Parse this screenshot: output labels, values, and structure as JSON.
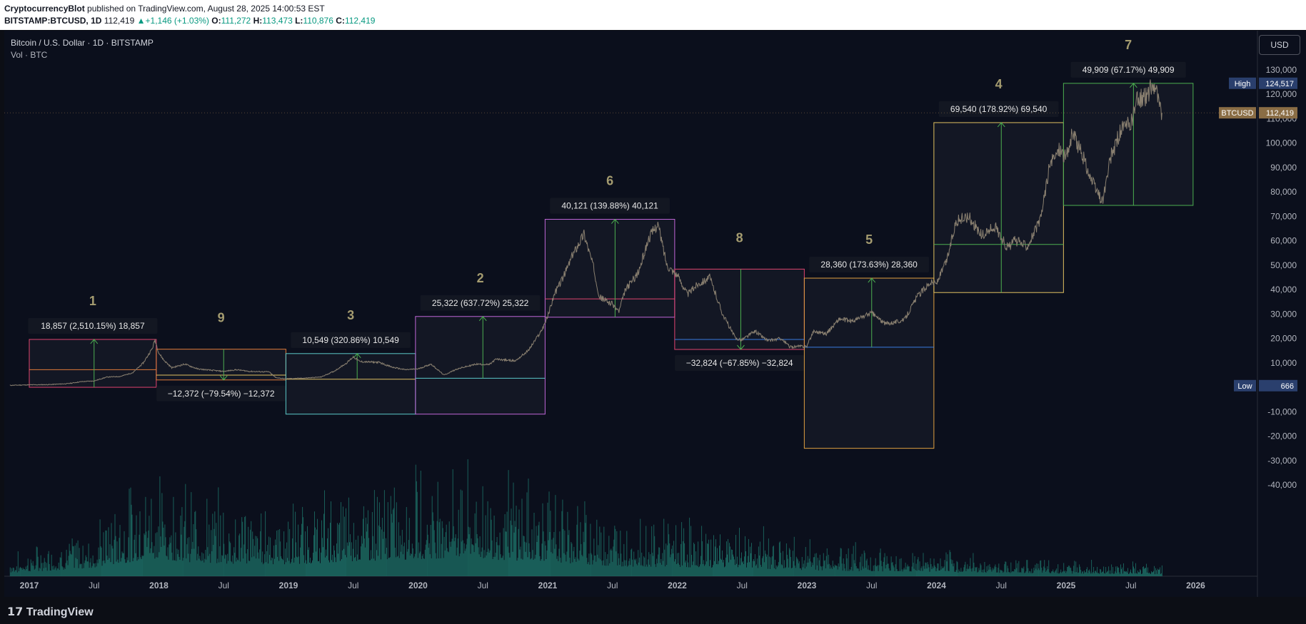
{
  "header": {
    "author": "CryptocurrencyBlot",
    "published": "published on TradingView.com, August 28, 2025 14:00:53 EST",
    "symbol": "BITSTAMP:BTCUSD, 1D",
    "last": "112,419",
    "change_arrow": "▲",
    "change": "+1,146 (+1.03%)",
    "o_label": "O:",
    "o": "111,272",
    "h_label": "H:",
    "h": "113,473",
    "l_label": "L:",
    "l": "110,876",
    "c_label": "C:",
    "c": "112,419"
  },
  "chart_legend": {
    "title": "Bitcoin / U.S. Dollar · 1D · BITSTAMP",
    "volume": "Vol · BTC"
  },
  "currency_button": "USD",
  "footer": {
    "logo": "TradingView"
  },
  "colors": {
    "background": "#0b0f1c",
    "price_line": "#8a8070",
    "volume": "#26a69a",
    "cycle_number": "#a59c70"
  },
  "chart_data": {
    "type": "line",
    "y_ticks": [
      130000,
      120000,
      110000,
      100000,
      90000,
      80000,
      70000,
      60000,
      50000,
      40000,
      30000,
      20000,
      10000,
      0,
      -10000,
      -20000,
      -30000,
      -40000
    ],
    "y_tick_labels": [
      "130,000",
      "120,000",
      "110,000",
      "100,000",
      "90,000",
      "80,000",
      "70,000",
      "60,000",
      "50,000",
      "40,000",
      "30,000",
      "20,000",
      "10,000",
      "",
      "-10,000",
      "-20,000",
      "-30,000",
      "-40,000"
    ],
    "ylim": [
      -43000,
      143000
    ],
    "x_ticks": [
      {
        "t": 2017.0,
        "label": "2017"
      },
      {
        "t": 2017.5,
        "label": "Jul"
      },
      {
        "t": 2018.0,
        "label": "2018"
      },
      {
        "t": 2018.5,
        "label": "Jul"
      },
      {
        "t": 2019.0,
        "label": "2019"
      },
      {
        "t": 2019.5,
        "label": "Jul"
      },
      {
        "t": 2020.0,
        "label": "2020"
      },
      {
        "t": 2020.5,
        "label": "Jul"
      },
      {
        "t": 2021.0,
        "label": "2021"
      },
      {
        "t": 2021.5,
        "label": "Jul"
      },
      {
        "t": 2022.0,
        "label": "2022"
      },
      {
        "t": 2022.5,
        "label": "Jul"
      },
      {
        "t": 2023.0,
        "label": "2023"
      },
      {
        "t": 2023.5,
        "label": "Jul"
      },
      {
        "t": 2024.0,
        "label": "2024"
      },
      {
        "t": 2024.5,
        "label": "Jul"
      },
      {
        "t": 2025.0,
        "label": "2025"
      },
      {
        "t": 2025.5,
        "label": "Jul"
      },
      {
        "t": 2026.0,
        "label": "2026"
      }
    ],
    "price_markers": [
      {
        "name": "High",
        "value": 124517,
        "label": "124,517",
        "color": "#2a3f6d"
      },
      {
        "name": "BTCUSD",
        "value": 112419,
        "label": "112,419",
        "color": "#8a6d45"
      },
      {
        "name": "Low",
        "value": 666,
        "label": "666",
        "color": "#2a3f6d"
      }
    ],
    "series": [
      {
        "values": [
          [
            2016.85,
            800
          ],
          [
            2017.0,
            1000
          ],
          [
            2017.15,
            1100
          ],
          [
            2017.3,
            1500
          ],
          [
            2017.4,
            2300
          ],
          [
            2017.5,
            2600
          ],
          [
            2017.6,
            4200
          ],
          [
            2017.7,
            4400
          ],
          [
            2017.8,
            6000
          ],
          [
            2017.88,
            10000
          ],
          [
            2017.95,
            16000
          ],
          [
            2017.97,
            19500
          ],
          [
            2018.0,
            14000
          ],
          [
            2018.04,
            11000
          ],
          [
            2018.1,
            8000
          ],
          [
            2018.2,
            9500
          ],
          [
            2018.3,
            7500
          ],
          [
            2018.4,
            7000
          ],
          [
            2018.5,
            6500
          ],
          [
            2018.6,
            7200
          ],
          [
            2018.7,
            6500
          ],
          [
            2018.85,
            6300
          ],
          [
            2018.9,
            4000
          ],
          [
            2018.97,
            3500
          ],
          [
            2019.1,
            3700
          ],
          [
            2019.25,
            4200
          ],
          [
            2019.35,
            6500
          ],
          [
            2019.45,
            10000
          ],
          [
            2019.5,
            12500
          ],
          [
            2019.55,
            10500
          ],
          [
            2019.7,
            10200
          ],
          [
            2019.8,
            8200
          ],
          [
            2019.9,
            7200
          ],
          [
            2020.0,
            7500
          ],
          [
            2020.1,
            9500
          ],
          [
            2020.2,
            5000
          ],
          [
            2020.3,
            7500
          ],
          [
            2020.45,
            9500
          ],
          [
            2020.55,
            9300
          ],
          [
            2020.6,
            11500
          ],
          [
            2020.75,
            10800
          ],
          [
            2020.85,
            15000
          ],
          [
            2020.95,
            23000
          ],
          [
            2021.0,
            29000
          ],
          [
            2021.05,
            38000
          ],
          [
            2021.12,
            45000
          ],
          [
            2021.2,
            55000
          ],
          [
            2021.28,
            63000
          ],
          [
            2021.35,
            50000
          ],
          [
            2021.4,
            37000
          ],
          [
            2021.5,
            34000
          ],
          [
            2021.55,
            31000
          ],
          [
            2021.6,
            40000
          ],
          [
            2021.7,
            47000
          ],
          [
            2021.78,
            61000
          ],
          [
            2021.85,
            67000
          ],
          [
            2021.92,
            50000
          ],
          [
            2022.0,
            46000
          ],
          [
            2022.08,
            38000
          ],
          [
            2022.15,
            42000
          ],
          [
            2022.25,
            45000
          ],
          [
            2022.35,
            30000
          ],
          [
            2022.45,
            20000
          ],
          [
            2022.5,
            19500
          ],
          [
            2022.6,
            23000
          ],
          [
            2022.7,
            19000
          ],
          [
            2022.8,
            20000
          ],
          [
            2022.87,
            16500
          ],
          [
            2022.95,
            16800
          ],
          [
            2023.0,
            16800
          ],
          [
            2023.05,
            23000
          ],
          [
            2023.15,
            22000
          ],
          [
            2023.25,
            28000
          ],
          [
            2023.35,
            27000
          ],
          [
            2023.5,
            30500
          ],
          [
            2023.6,
            26000
          ],
          [
            2023.75,
            27500
          ],
          [
            2023.85,
            37000
          ],
          [
            2023.95,
            43000
          ],
          [
            2024.0,
            42500
          ],
          [
            2024.08,
            52000
          ],
          [
            2024.15,
            68000
          ],
          [
            2024.25,
            70000
          ],
          [
            2024.35,
            62000
          ],
          [
            2024.45,
            66000
          ],
          [
            2024.55,
            57000
          ],
          [
            2024.6,
            60000
          ],
          [
            2024.7,
            58000
          ],
          [
            2024.8,
            68000
          ],
          [
            2024.87,
            90000
          ],
          [
            2024.95,
            98000
          ],
          [
            2025.0,
            94000
          ],
          [
            2025.05,
            104000
          ],
          [
            2025.12,
            96000
          ],
          [
            2025.2,
            84000
          ],
          [
            2025.28,
            76000
          ],
          [
            2025.35,
            95000
          ],
          [
            2025.42,
            105000
          ],
          [
            2025.5,
            108000
          ],
          [
            2025.55,
            118000
          ],
          [
            2025.62,
            119000
          ],
          [
            2025.65,
            122500
          ],
          [
            2025.69,
            124500
          ],
          [
            2025.72,
            115000
          ],
          [
            2025.74,
            112419
          ]
        ]
      }
    ],
    "volume": {
      "note": "relative bars",
      "profile": [
        [
          2016.85,
          0.1
        ],
        [
          2017.5,
          0.25
        ],
        [
          2017.95,
          0.55
        ],
        [
          2018.3,
          0.4
        ],
        [
          2019.0,
          0.35
        ],
        [
          2019.5,
          0.45
        ],
        [
          2020.2,
          0.55
        ],
        [
          2021.0,
          0.45
        ],
        [
          2021.5,
          0.3
        ],
        [
          2022.5,
          0.25
        ],
        [
          2023.0,
          0.18
        ],
        [
          2024.0,
          0.12
        ],
        [
          2025.0,
          0.08
        ],
        [
          2025.75,
          0.06
        ]
      ]
    },
    "boxes": [
      {
        "num": "1",
        "label": "18,857 (2,510.15%) 18,857",
        "t0": 2017.0,
        "t1": 2017.98,
        "y0": 0,
        "y1": 19600,
        "mid": 7200,
        "color": "#e0446f",
        "mid_color": "#e07a3a",
        "arrow_t": 2017.5,
        "arrow_y0": 0,
        "arrow_y1": 19600,
        "label_pos": "above"
      },
      {
        "num": "9",
        "label": "−12,372 (−79.54%) −12,372",
        "t0": 2017.98,
        "t1": 2018.98,
        "y0": 3000,
        "y1": 15600,
        "mid": 5000,
        "color": "#e07a3a",
        "mid_color": "#e0c060",
        "arrow_t": 2018.5,
        "arrow_y0": 15600,
        "arrow_y1": 3000,
        "label_pos": "below"
      },
      {
        "num": "3",
        "label": "10,549 (320.86%) 10,549",
        "t0": 2018.98,
        "t1": 2019.98,
        "y0": -11000,
        "y1": 13800,
        "mid": 3300,
        "color": "#5bc8c8",
        "mid_color": "#e0c060",
        "arrow_t": 2019.53,
        "arrow_y0": 3300,
        "arrow_y1": 13800,
        "label_pos": "above"
      },
      {
        "num": "2",
        "label": "25,322 (637.72%) 25,322",
        "t0": 2019.98,
        "t1": 2020.98,
        "y0": -11000,
        "y1": 29000,
        "mid": 3700,
        "color": "#c066d8",
        "mid_color": "#5bc8c8",
        "arrow_t": 2020.5,
        "arrow_y0": 3700,
        "arrow_y1": 29000,
        "label_pos": "above"
      },
      {
        "num": "6",
        "label": "40,121 (139.88%) 40,121",
        "t0": 2020.98,
        "t1": 2021.98,
        "y0": 28700,
        "y1": 68800,
        "mid": 36200,
        "color": "#c066d8",
        "mid_color": "#e0446f",
        "arrow_t": 2021.52,
        "arrow_y0": 28700,
        "arrow_y1": 68800,
        "label_pos": "above"
      },
      {
        "num": "8",
        "label": "−32,824 (−67.85%) −32,824",
        "t0": 2021.98,
        "t1": 2022.98,
        "y0": 15500,
        "y1": 48400,
        "mid": 19600,
        "color": "#e0446f",
        "mid_color": "#3a7be0",
        "arrow_t": 2022.49,
        "arrow_y0": 48400,
        "arrow_y1": 15500,
        "label_pos": "below"
      },
      {
        "num": "5",
        "label": "28,360 (173.63%) 28,360",
        "t0": 2022.98,
        "t1": 2023.98,
        "y0": -25000,
        "y1": 44700,
        "mid": 16400,
        "color": "#e0a040",
        "mid_color": "#3a7be0",
        "arrow_t": 2023.5,
        "arrow_y0": 16400,
        "arrow_y1": 44700,
        "label_pos": "above"
      },
      {
        "num": "4",
        "label": "69,540 (178.92%) 69,540",
        "t0": 2023.98,
        "t1": 2024.98,
        "y0": 38800,
        "y1": 108400,
        "mid": 58500,
        "color": "#e0c060",
        "mid_color": "#4caf50",
        "arrow_t": 2024.5,
        "arrow_y0": 38800,
        "arrow_y1": 108400,
        "label_pos": "above"
      },
      {
        "num": "7",
        "label": "49,909 (67.17%) 49,909",
        "t0": 2024.98,
        "t1": 2025.98,
        "y0": 74500,
        "y1": 124500,
        "mid": null,
        "color": "#4caf50",
        "mid_color": null,
        "arrow_t": 2025.52,
        "arrow_y0": 74500,
        "arrow_y1": 124500,
        "label_pos": "above"
      }
    ]
  }
}
